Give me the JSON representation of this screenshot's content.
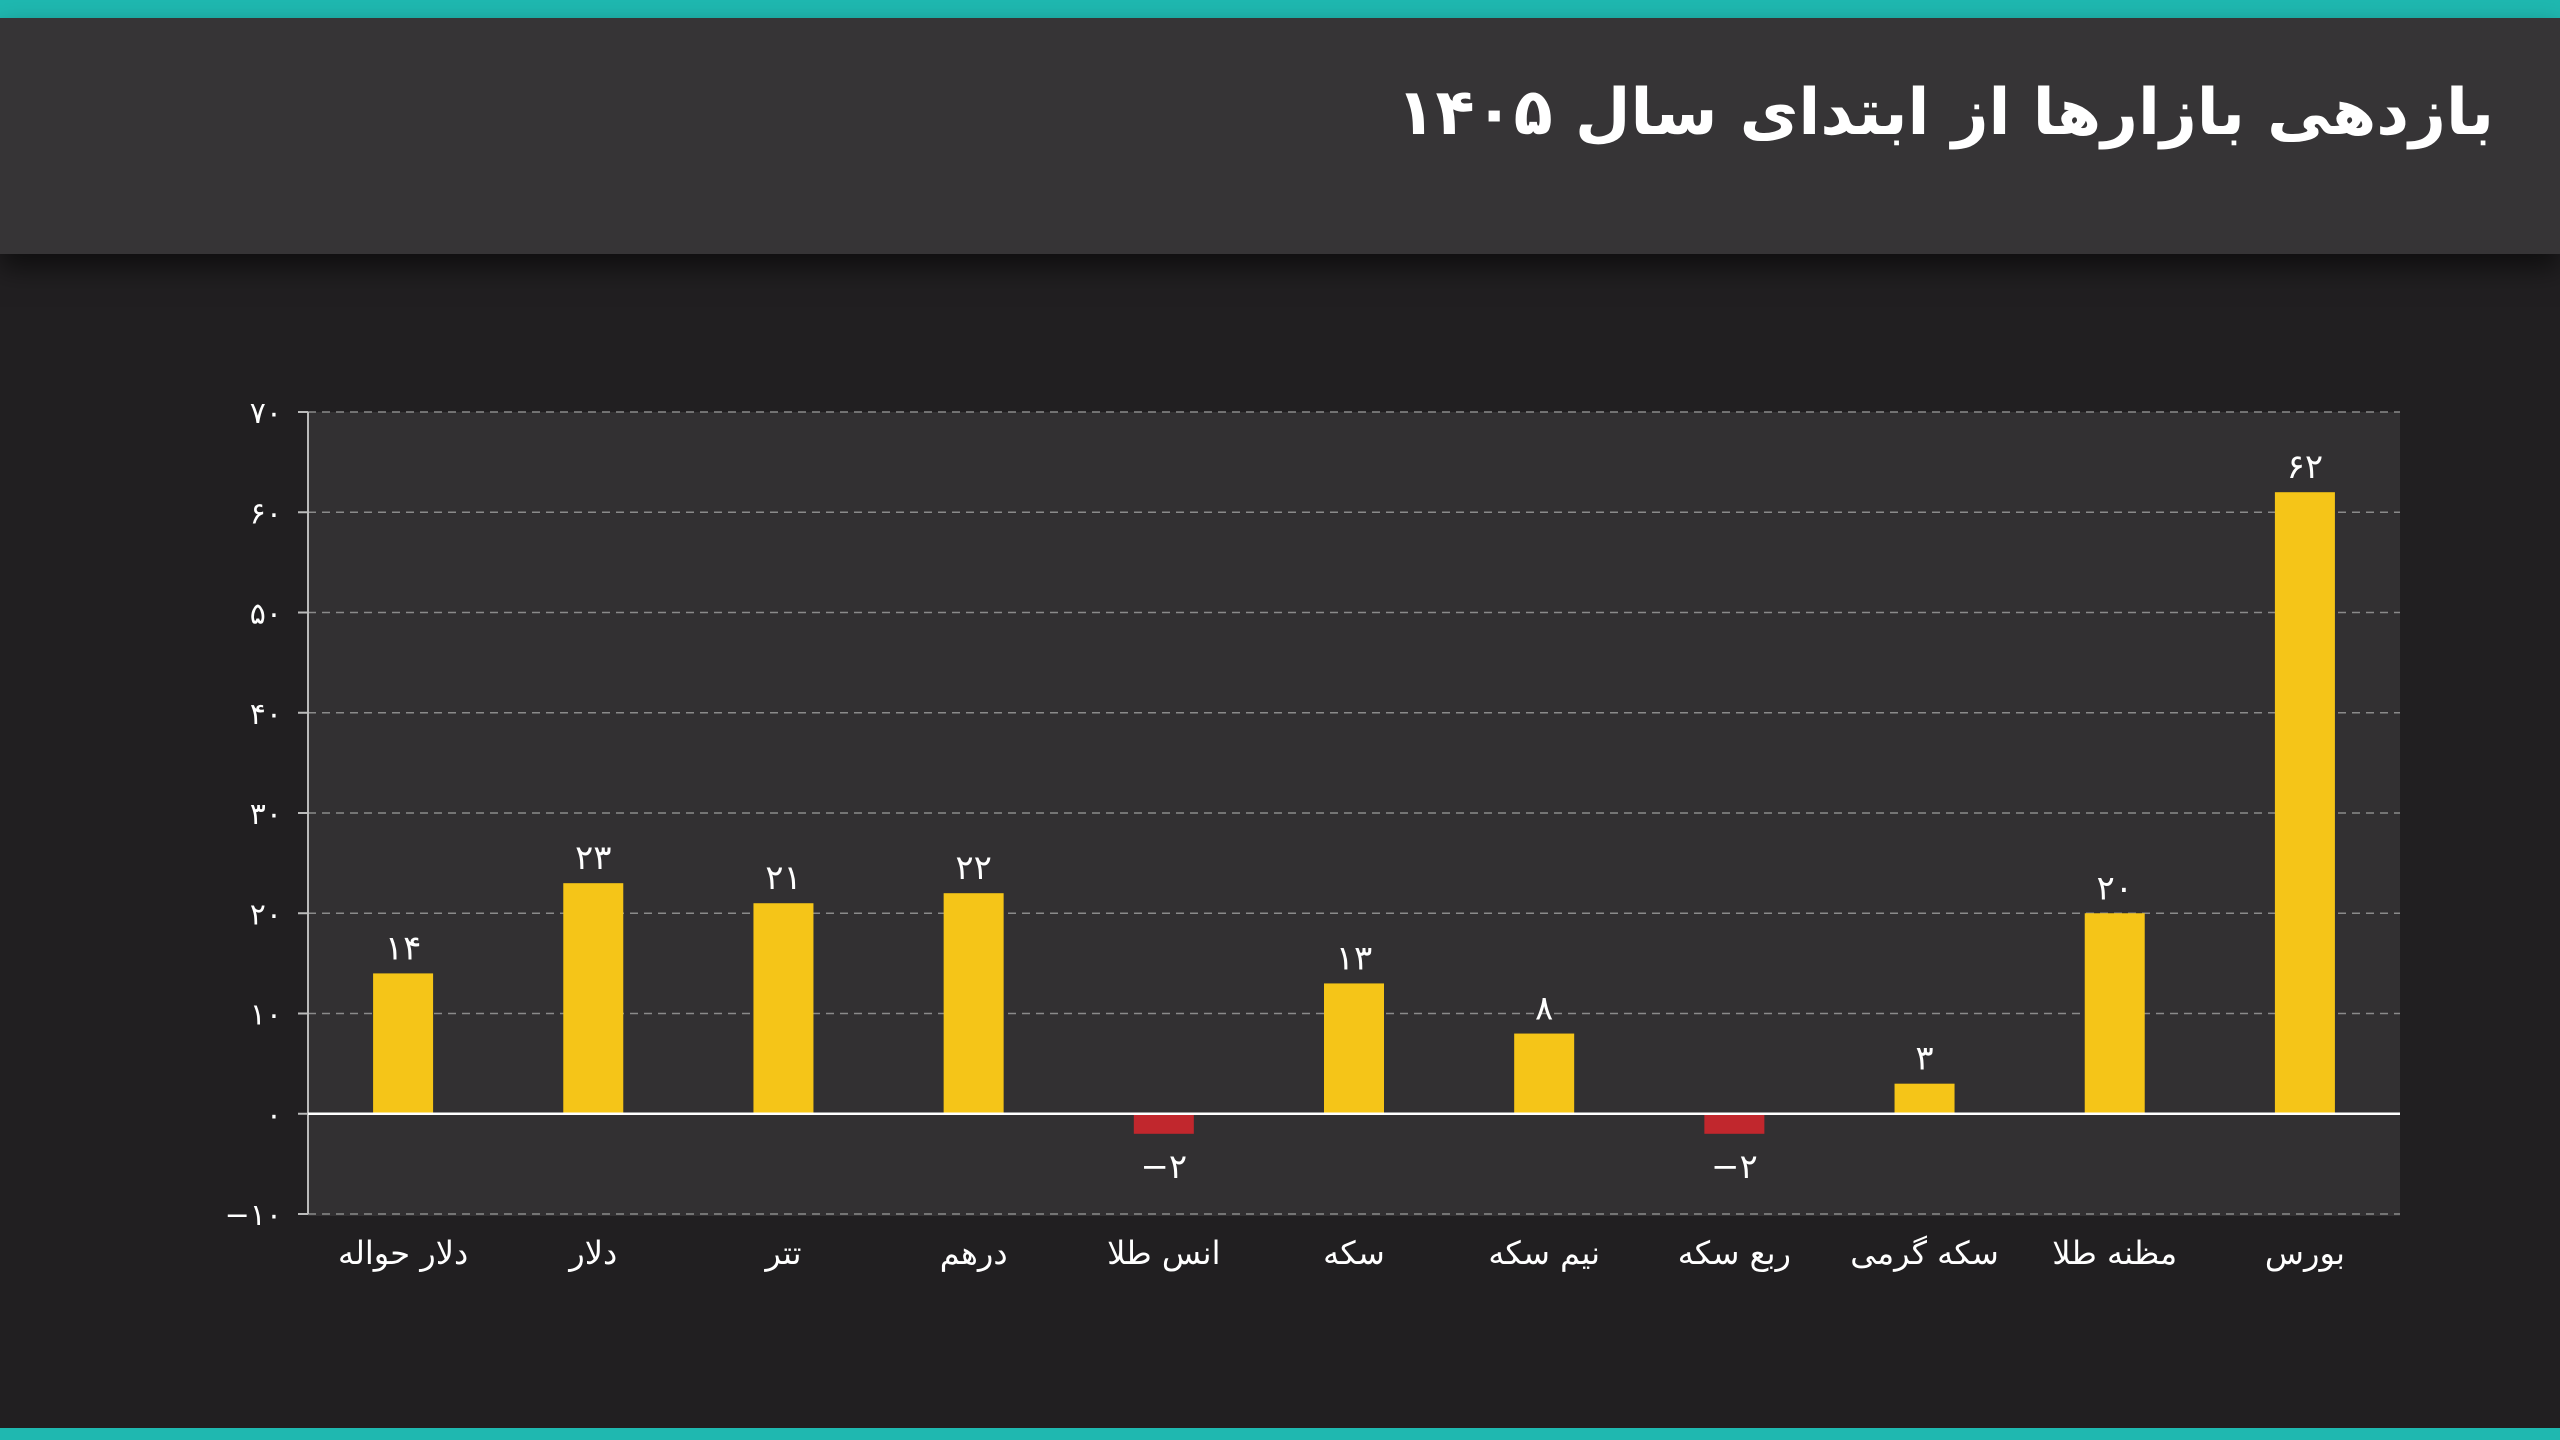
{
  "header": {
    "title": "بازدهی بازارها از ابتدای سال ۱۴۰۵"
  },
  "colors": {
    "positive": "#f5c518",
    "negative": "#c1272d",
    "accent": "#1fb8b0"
  },
  "chart_data": {
    "type": "bar",
    "title": "بازدهی بازارها از ابتدای سال ۱۴۰۵",
    "xlabel": "",
    "ylabel": "",
    "ylim": [
      -10,
      70
    ],
    "yticks": [
      -10,
      0,
      10,
      20,
      30,
      40,
      50,
      60,
      70
    ],
    "ytick_labels": [
      "−۱۰",
      "۰",
      "۱۰",
      "۲۰",
      "۳۰",
      "۴۰",
      "۵۰",
      "۶۰",
      "۷۰"
    ],
    "grid": true,
    "categories": [
      "دلار حواله",
      "دلار",
      "تتر",
      "درهم",
      "انس طلا",
      "سکه",
      "نیم سکه",
      "ربع سکه",
      "سکه گرمی",
      "مظنه طلا",
      "بورس"
    ],
    "values": [
      14,
      23,
      21,
      22,
      -2,
      13,
      8,
      -2,
      3,
      20,
      62
    ],
    "value_labels": [
      "۱۴",
      "۲۳",
      "۲۱",
      "۲۲",
      "−۲",
      "۱۳",
      "۸",
      "−۲",
      "۳",
      "۲۰",
      "۶۲"
    ]
  }
}
